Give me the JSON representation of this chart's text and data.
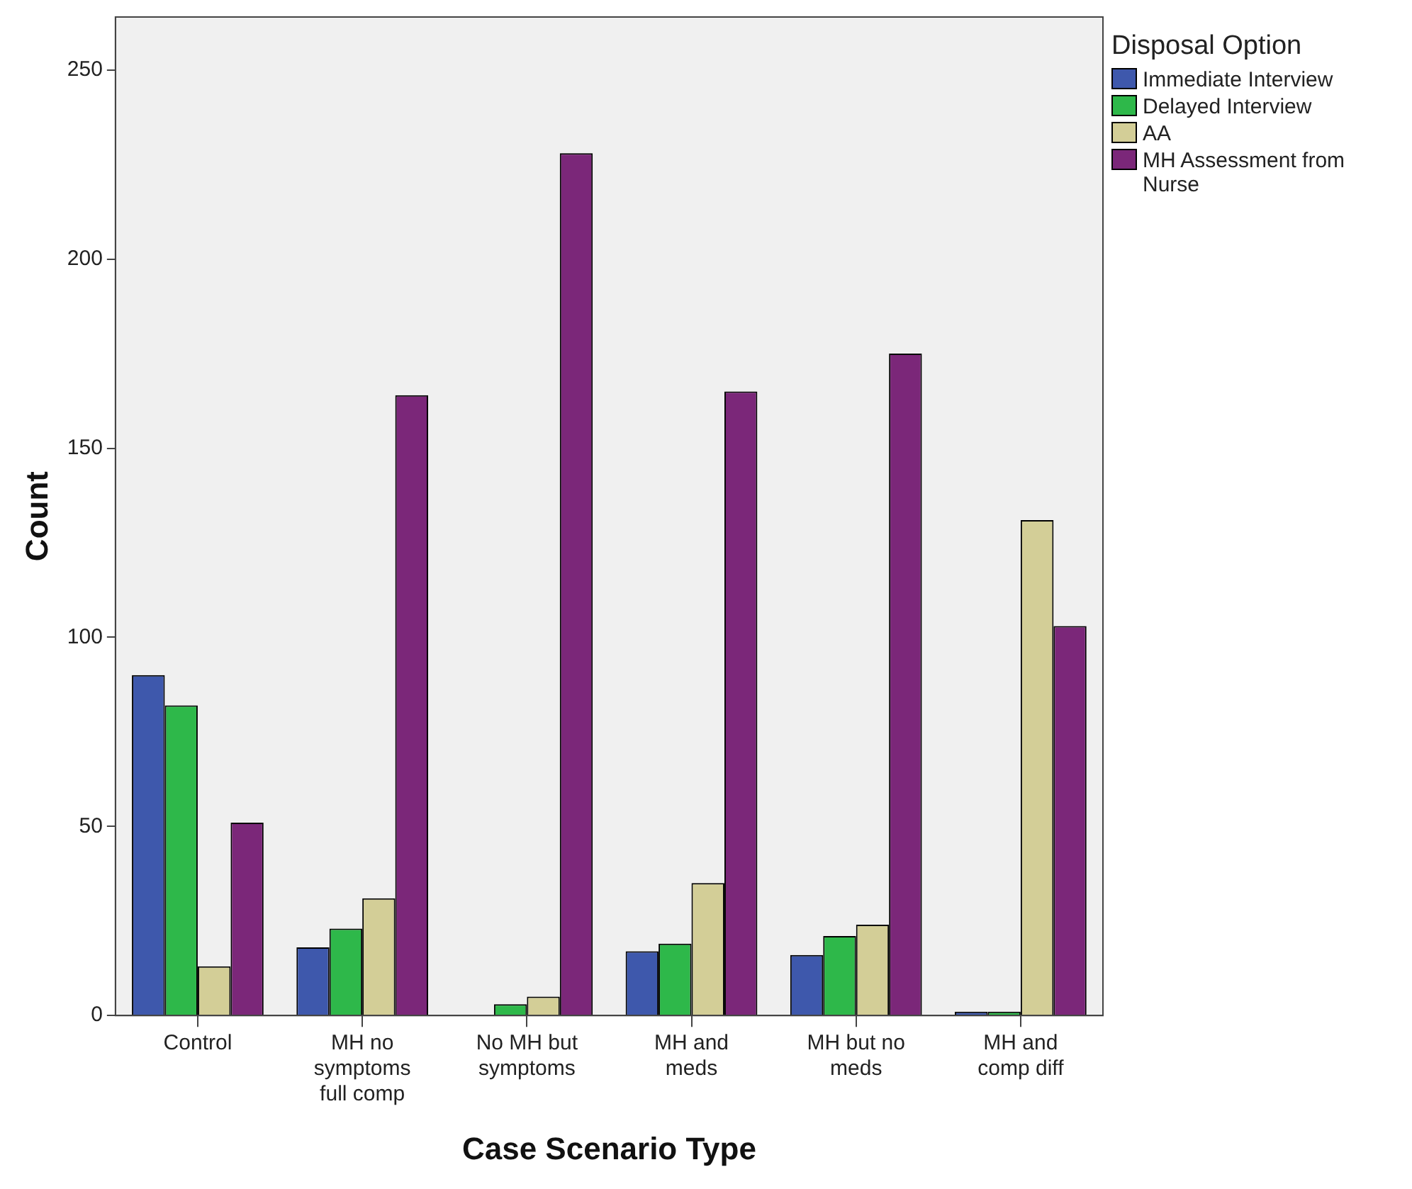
{
  "chart_data": {
    "type": "bar",
    "xlabel": "Case Scenario Type",
    "ylabel": "Count",
    "legend_title": "Disposal Option",
    "legend": "right",
    "categories": [
      "Control",
      "MH no symptoms full comp",
      "No MH but symptoms",
      "MH and meds",
      "MH but no meds",
      "MH and comp diff"
    ],
    "series": [
      {
        "name": "Immediate Interview",
        "color": "#3e58ac",
        "values": [
          90,
          18,
          0,
          17,
          16,
          1
        ]
      },
      {
        "name": "Delayed Interview",
        "color": "#2eb84a",
        "values": [
          82,
          23,
          3,
          19,
          21,
          1
        ]
      },
      {
        "name": "AA",
        "color": "#d3ce97",
        "values": [
          13,
          31,
          5,
          35,
          24,
          131
        ]
      },
      {
        "name": "MH Assessment from Nurse",
        "color": "#7b2779",
        "values": [
          51,
          164,
          228,
          165,
          175,
          103
        ]
      }
    ],
    "ylim": [
      0,
      264
    ],
    "yticks": [
      0,
      50,
      100,
      150,
      200,
      250
    ],
    "grid": false
  }
}
